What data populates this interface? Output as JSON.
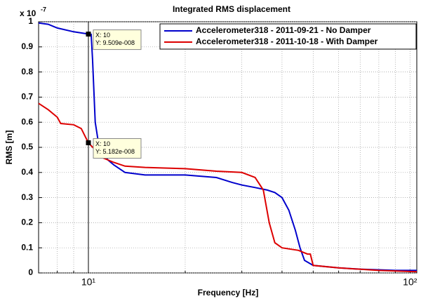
{
  "chart_data": {
    "type": "line",
    "title": "Integrated RMS displacement",
    "xlabel": "Frequency [Hz]",
    "ylabel": "RMS [m]",
    "y_exponent_base": "x 10",
    "y_exponent": "-7",
    "xscale": "log",
    "xlim": [
      7,
      105
    ],
    "ylim": [
      0,
      1
    ],
    "xticks": [
      {
        "value": 10,
        "label": "10¹"
      },
      {
        "value": 100,
        "label": "10²"
      }
    ],
    "minor_xticks": [
      8,
      9,
      20,
      30,
      40,
      50,
      60,
      70,
      80,
      90
    ],
    "yticks": [
      0,
      0.1,
      0.2,
      0.3,
      0.4,
      0.5,
      0.6,
      0.7,
      0.8,
      0.9,
      1
    ],
    "grid": true,
    "legend": "top-right",
    "series": [
      {
        "name": "Accelerometer318 - 2011-09-21 - No Damper",
        "color": "#0000cc",
        "x": [
          7,
          7.5,
          8,
          9,
          10,
          10.2,
          10.3,
          10.5,
          10.8,
          11.5,
          12,
          13,
          15,
          20,
          25,
          28,
          30,
          33,
          36,
          38,
          40,
          42,
          44,
          45.5,
          47,
          50,
          60,
          70,
          90,
          105
        ],
        "values": [
          0.995,
          0.99,
          0.975,
          0.96,
          0.951,
          0.95,
          0.85,
          0.6,
          0.5,
          0.45,
          0.43,
          0.4,
          0.39,
          0.39,
          0.38,
          0.36,
          0.35,
          0.34,
          0.33,
          0.32,
          0.3,
          0.25,
          0.17,
          0.1,
          0.05,
          0.03,
          0.02,
          0.015,
          0.01,
          0.01
        ]
      },
      {
        "name": "Accelerometer318 - 2011-10-18 - With Damper",
        "color": "#dd0000",
        "x": [
          7,
          7.5,
          8,
          8.2,
          9,
          9.5,
          9.8,
          10,
          10.5,
          11,
          12,
          13,
          15,
          20,
          25,
          30,
          33,
          35,
          36.5,
          38,
          40,
          45,
          48,
          49,
          50,
          60,
          80,
          105
        ],
        "values": [
          0.675,
          0.65,
          0.62,
          0.595,
          0.59,
          0.575,
          0.54,
          0.518,
          0.49,
          0.46,
          0.44,
          0.425,
          0.42,
          0.415,
          0.405,
          0.4,
          0.38,
          0.33,
          0.2,
          0.12,
          0.1,
          0.09,
          0.075,
          0.075,
          0.03,
          0.02,
          0.01,
          0.005
        ]
      }
    ],
    "datatips": [
      {
        "x": 10,
        "y": 0.9509,
        "labels": [
          "X: 10",
          "Y: 9.509e-008"
        ]
      },
      {
        "x": 10,
        "y": 0.5182,
        "labels": [
          "X: 10",
          "Y: 5.182e-008"
        ]
      }
    ]
  }
}
